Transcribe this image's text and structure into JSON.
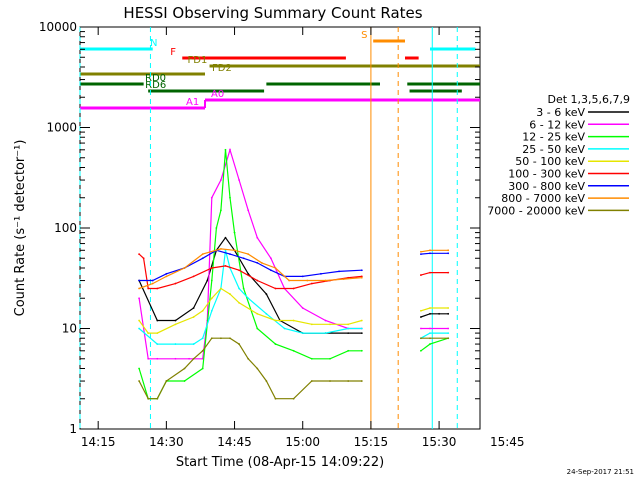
{
  "chart_data": {
    "type": "line",
    "title": "HESSI Observing Summary Count Rates",
    "xlabel": "Start Time (08-Apr-15 14:09:22)",
    "ylabel": "Count Rate (s⁻¹ detector⁻¹)",
    "yscale": "log",
    "ylim": [
      1,
      10000
    ],
    "xlim_minutes": [
      11.0,
      99.0
    ],
    "x_ticks": [
      "14:15",
      "14:30",
      "14:45",
      "15:00",
      "15:15",
      "15:30",
      "15:45"
    ],
    "x_tick_minutes": [
      15,
      30,
      45,
      60,
      75,
      90,
      105
    ],
    "y_ticks": [
      "1",
      "10",
      "100",
      "1000",
      "10000"
    ],
    "y_tick_values": [
      1,
      10,
      100,
      1000,
      10000
    ],
    "footer": "24-Sep-2017 21:51",
    "legend": {
      "title": "Det 1,3,5,6,7,9",
      "placement": "right",
      "entries": [
        {
          "label": "3 - 6 keV",
          "color": "#000000"
        },
        {
          "label": "6 - 12 keV",
          "color": "#ff00ff"
        },
        {
          "label": "12 - 25 keV",
          "color": "#00ff00"
        },
        {
          "label": "25 - 50 keV",
          "color": "#00ffff"
        },
        {
          "label": "50 - 100 keV",
          "color": "#e6e600"
        },
        {
          "label": "100 - 300 keV",
          "color": "#ff0000"
        },
        {
          "label": "300 - 800 keV",
          "color": "#0000ff"
        },
        {
          "label": "800 - 7000 keV",
          "color": "#ff8c00"
        },
        {
          "label": "7000 - 20000 keV",
          "color": "#808000"
        }
      ]
    },
    "flags": [
      {
        "label": "N",
        "color": "#00ffff",
        "segments": [
          [
            11.0,
            27.0
          ],
          [
            88.0,
            98.0
          ]
        ]
      },
      {
        "label": "S",
        "color": "#ff8c00",
        "segments": [
          [
            75.5,
            82.5
          ]
        ]
      },
      {
        "label": "F",
        "color": "#ff0000",
        "segments": [
          [
            33.5,
            69.5
          ],
          [
            82.5,
            85.5
          ]
        ]
      },
      {
        "label": "FD1",
        "color": "#808000",
        "segments": [
          [
            39.5,
            99.0
          ]
        ]
      },
      {
        "label": "FD2",
        "color": "#808000",
        "segments": [
          [
            11.0,
            38.5
          ]
        ]
      },
      {
        "label": "RD0",
        "color": "#006400",
        "segments": [
          [
            11.0,
            25.0
          ],
          [
            52.0,
            77.0
          ],
          [
            83.0,
            99.0
          ]
        ]
      },
      {
        "label": "RD6",
        "color": "#006400",
        "segments": [
          [
            26.0,
            51.5
          ],
          [
            83.5,
            95.0
          ]
        ]
      },
      {
        "label": "A0",
        "color": "#ff00ff",
        "segments": [
          [
            38.5,
            99.0
          ]
        ]
      },
      {
        "label": "A1",
        "color": "#ff00ff",
        "segments": [
          [
            11.0,
            38.5
          ]
        ]
      }
    ],
    "markers": [
      {
        "x": 11.0,
        "color": "#00ffff",
        "style": "dashed"
      },
      {
        "x": 26.5,
        "color": "#00ffff",
        "style": "dashed"
      },
      {
        "x": 94.0,
        "color": "#00ffff",
        "style": "dashed"
      },
      {
        "x": 81.0,
        "color": "#ff8c00",
        "style": "dashed"
      },
      {
        "x": 75.0,
        "color": "#ff8c00",
        "style": "solid"
      },
      {
        "x": 88.5,
        "color": "#00ffff",
        "style": "solid"
      }
    ],
    "series": [
      {
        "name": "3 - 6 keV",
        "color": "#000000",
        "segments": [
          [
            [
              24,
              30
            ],
            [
              28,
              12
            ],
            [
              32,
              12
            ],
            [
              36,
              16
            ],
            [
              39,
              30
            ],
            [
              41,
              60
            ],
            [
              43,
              80
            ],
            [
              45,
              60
            ],
            [
              48,
              35
            ],
            [
              52,
              22
            ],
            [
              55,
              12
            ],
            [
              60,
              9
            ],
            [
              65,
              9
            ],
            [
              70,
              9
            ],
            [
              73,
              9
            ]
          ],
          [
            [
              86,
              13
            ],
            [
              88,
              14
            ],
            [
              90,
              14
            ],
            [
              92,
              14
            ]
          ]
        ]
      },
      {
        "name": "6 - 12 keV",
        "color": "#ff00ff",
        "segments": [
          [
            [
              24,
              20
            ],
            [
              26,
              5
            ],
            [
              28,
              5
            ],
            [
              32,
              5
            ],
            [
              35,
              5
            ],
            [
              38,
              5
            ],
            [
              39,
              12
            ],
            [
              40,
              200
            ],
            [
              42,
              300
            ],
            [
              44,
              600
            ],
            [
              46,
              300
            ],
            [
              48,
              150
            ],
            [
              50,
              80
            ],
            [
              53,
              50
            ],
            [
              56,
              25
            ],
            [
              60,
              16
            ],
            [
              65,
              12
            ],
            [
              70,
              10
            ],
            [
              73,
              10
            ]
          ],
          [
            [
              86,
              10
            ],
            [
              88,
              10
            ],
            [
              92,
              10
            ]
          ]
        ]
      },
      {
        "name": "12 - 25 keV",
        "color": "#00ff00",
        "segments": [
          [
            [
              24,
              4
            ],
            [
              26,
              2
            ],
            [
              28,
              2
            ],
            [
              30,
              3
            ],
            [
              34,
              3
            ],
            [
              38,
              4
            ],
            [
              40,
              30
            ],
            [
              41,
              100
            ],
            [
              42,
              150
            ],
            [
              43,
              600
            ],
            [
              44,
              200
            ],
            [
              45,
              90
            ],
            [
              47,
              25
            ],
            [
              50,
              10
            ],
            [
              54,
              7
            ],
            [
              58,
              6
            ],
            [
              62,
              5
            ],
            [
              66,
              5
            ],
            [
              70,
              6
            ],
            [
              73,
              6
            ]
          ],
          [
            [
              86,
              6
            ],
            [
              88,
              7
            ],
            [
              92,
              8
            ]
          ]
        ]
      },
      {
        "name": "25 - 50 keV",
        "color": "#00ffff",
        "segments": [
          [
            [
              24,
              10
            ],
            [
              28,
              7
            ],
            [
              32,
              7
            ],
            [
              36,
              7
            ],
            [
              38,
              8
            ],
            [
              40,
              15
            ],
            [
              42,
              25
            ],
            [
              43,
              60
            ],
            [
              44,
              40
            ],
            [
              46,
              25
            ],
            [
              48,
              20
            ],
            [
              52,
              14
            ],
            [
              56,
              10
            ],
            [
              60,
              9
            ],
            [
              65,
              9
            ],
            [
              70,
              10
            ],
            [
              73,
              10
            ]
          ],
          [
            [
              86,
              8
            ],
            [
              88,
              9
            ],
            [
              92,
              9
            ]
          ]
        ]
      },
      {
        "name": "50 - 100 keV",
        "color": "#e6e600",
        "segments": [
          [
            [
              24,
              12
            ],
            [
              26,
              9
            ],
            [
              28,
              9
            ],
            [
              32,
              11
            ],
            [
              36,
              13
            ],
            [
              38,
              15
            ],
            [
              40,
              20
            ],
            [
              42,
              25
            ],
            [
              44,
              22
            ],
            [
              46,
              18
            ],
            [
              50,
              14
            ],
            [
              54,
              12
            ],
            [
              58,
              12
            ],
            [
              62,
              11
            ],
            [
              66,
              11
            ],
            [
              70,
              11
            ],
            [
              73,
              12
            ]
          ],
          [
            [
              86,
              15
            ],
            [
              88,
              16
            ],
            [
              92,
              16
            ]
          ]
        ]
      },
      {
        "name": "100 - 300 keV",
        "color": "#ff0000",
        "segments": [
          [
            [
              24,
              55
            ],
            [
              25,
              50
            ],
            [
              26,
              25
            ],
            [
              28,
              25
            ],
            [
              32,
              28
            ],
            [
              36,
              33
            ],
            [
              40,
              40
            ],
            [
              43,
              42
            ],
            [
              46,
              38
            ],
            [
              50,
              30
            ],
            [
              54,
              25
            ],
            [
              58,
              25
            ],
            [
              62,
              28
            ],
            [
              66,
              30
            ],
            [
              70,
              32
            ],
            [
              73,
              33
            ]
          ],
          [
            [
              86,
              34
            ],
            [
              88,
              36
            ],
            [
              92,
              36
            ]
          ]
        ]
      },
      {
        "name": "300 - 800 keV",
        "color": "#0000ff",
        "segments": [
          [
            [
              24,
              30
            ],
            [
              27,
              30
            ],
            [
              30,
              35
            ],
            [
              34,
              40
            ],
            [
              38,
              50
            ],
            [
              41,
              60
            ],
            [
              44,
              55
            ],
            [
              47,
              50
            ],
            [
              50,
              45
            ],
            [
              53,
              38
            ],
            [
              56,
              33
            ],
            [
              60,
              33
            ],
            [
              64,
              35
            ],
            [
              68,
              37
            ],
            [
              73,
              38
            ]
          ],
          [
            [
              86,
              55
            ],
            [
              88,
              56
            ],
            [
              92,
              56
            ]
          ]
        ]
      },
      {
        "name": "800 - 7000 keV",
        "color": "#ff8c00",
        "segments": [
          [
            [
              24,
              25
            ],
            [
              27,
              28
            ],
            [
              30,
              33
            ],
            [
              34,
              40
            ],
            [
              38,
              55
            ],
            [
              42,
              62
            ],
            [
              45,
              60
            ],
            [
              48,
              55
            ],
            [
              51,
              45
            ],
            [
              54,
              40
            ],
            [
              57,
              30
            ],
            [
              61,
              30
            ],
            [
              65,
              30
            ],
            [
              69,
              31
            ],
            [
              73,
              32
            ]
          ],
          [
            [
              86,
              58
            ],
            [
              88,
              60
            ],
            [
              92,
              60
            ]
          ]
        ]
      },
      {
        "name": "7000 - 20000 keV",
        "color": "#808000",
        "segments": [
          [
            [
              24,
              3
            ],
            [
              26,
              2
            ],
            [
              28,
              2
            ],
            [
              30,
              3
            ],
            [
              34,
              4
            ],
            [
              36,
              5
            ],
            [
              38,
              6
            ],
            [
              40,
              8
            ],
            [
              42,
              8
            ],
            [
              44,
              8
            ],
            [
              46,
              7
            ],
            [
              48,
              5
            ],
            [
              50,
              4
            ],
            [
              52,
              3
            ],
            [
              54,
              2
            ],
            [
              58,
              2
            ],
            [
              62,
              3
            ],
            [
              66,
              3
            ],
            [
              70,
              3
            ],
            [
              73,
              3
            ]
          ],
          [
            [
              86,
              8
            ],
            [
              88,
              8
            ],
            [
              92,
              8
            ]
          ]
        ]
      }
    ]
  }
}
